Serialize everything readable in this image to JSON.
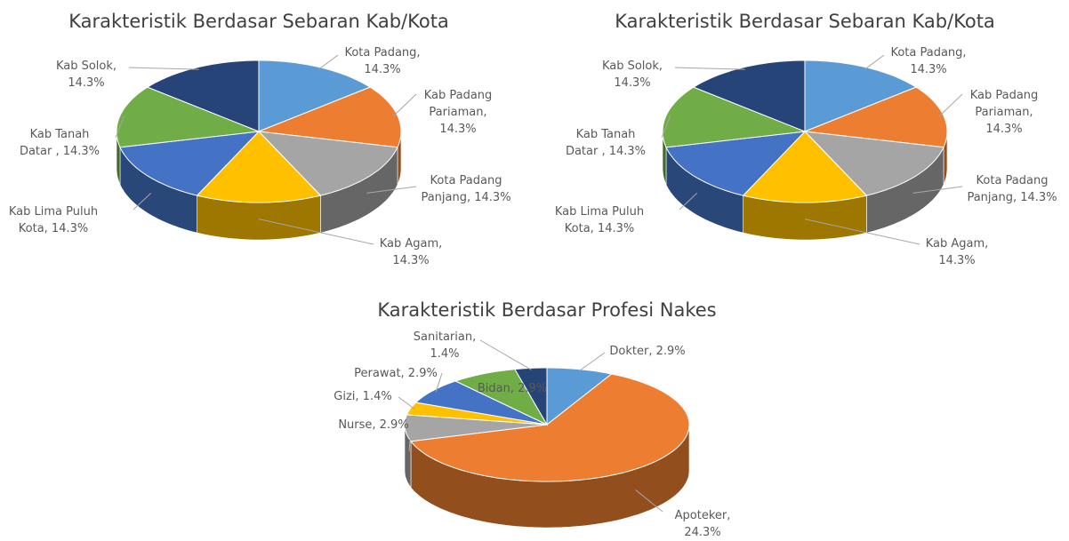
{
  "chart_data": [
    {
      "type": "pie",
      "title": "Karakteristik Berdasar Sebaran Kab/Kota",
      "labels": [
        "Kota Padang, 14.3%",
        "Kab Padang Pariaman, 14.3%",
        "Kota Padang Panjang, 14.3%",
        "Kab Agam, 14.3%",
        "Kab Lima Puluh Kota, 14.3%",
        "Kab Tanah Datar , 14.3%",
        "Kab Solok, 14.3%"
      ],
      "values": [
        14.3,
        14.3,
        14.3,
        14.3,
        14.3,
        14.3,
        14.3
      ],
      "colors": [
        "#5b9bd5",
        "#ed7d31",
        "#a5a5a5",
        "#ffc000",
        "#4472c4",
        "#70ad47",
        "#264478"
      ]
    },
    {
      "type": "pie",
      "title": "Karakteristik Berdasar Sebaran Kab/Kota",
      "labels": [
        "Kota Padang, 14.3%",
        "Kab Padang Pariaman, 14.3%",
        "Kota Padang Panjang, 14.3%",
        "Kab Agam, 14.3%",
        "Kab Lima Puluh Kota, 14.3%",
        "Kab Tanah Datar , 14.3%",
        "Kab Solok, 14.3%"
      ],
      "values": [
        14.3,
        14.3,
        14.3,
        14.3,
        14.3,
        14.3,
        14.3
      ],
      "colors": [
        "#5b9bd5",
        "#ed7d31",
        "#a5a5a5",
        "#ffc000",
        "#4472c4",
        "#70ad47",
        "#264478"
      ]
    },
    {
      "type": "pie",
      "title": "Karakteristik Berdasar Profesi Nakes",
      "labels": [
        "Dokter, 2.9%",
        "Apoteker, 24.3%",
        "Nurse, 2.9%",
        "Gizi, 1.4%",
        "Perawat, 2.9%",
        "Bidan, 2.9%",
        "Sanitarian, 1.4%"
      ],
      "values": [
        2.9,
        24.3,
        2.9,
        1.4,
        2.9,
        2.9,
        1.4
      ],
      "colors": [
        "#5b9bd5",
        "#ed7d31",
        "#a5a5a5",
        "#ffc000",
        "#4472c4",
        "#70ad47",
        "#264478"
      ]
    }
  ]
}
